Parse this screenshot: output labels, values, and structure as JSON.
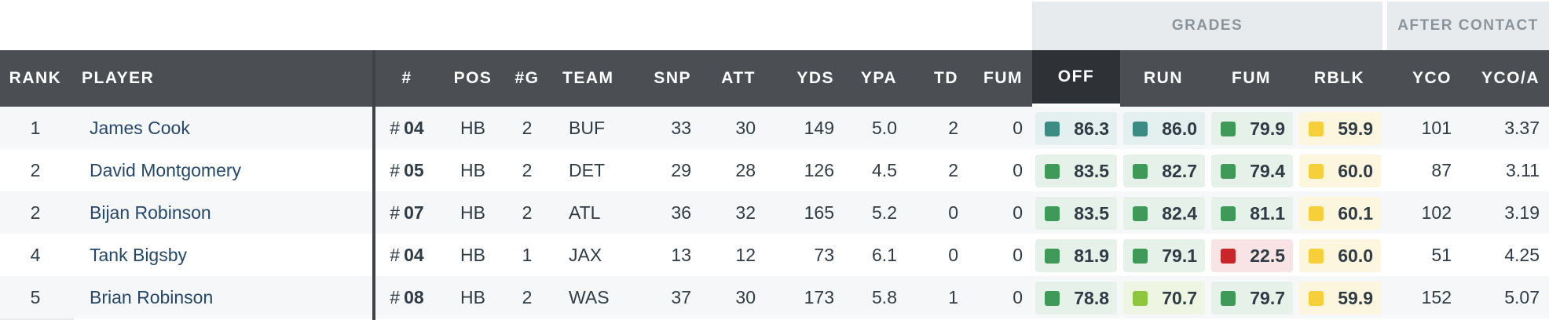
{
  "groups": {
    "grades": "GRADES",
    "after_contact": "AFTER CONTACT"
  },
  "columns": [
    "RANK",
    "PLAYER",
    "#",
    "POS",
    "#G",
    "TEAM",
    "SNP",
    "ATT",
    "YDS",
    "YPA",
    "TD",
    "FUM",
    "OFF",
    "RUN",
    "FUM",
    "RBLK",
    "YCO",
    "YCO/A"
  ],
  "colors": {
    "grade_teal": "#3c8c84",
    "grade_green": "#3f9a5a",
    "grade_lightgreen": "#8cc63f",
    "grade_yellow": "#f6cf3a",
    "grade_red": "#c8262a",
    "header_bg": "#4b4f53"
  },
  "rows": [
    {
      "rank": "1",
      "player": "James Cook",
      "jersey_prefix": "#",
      "jersey": "04",
      "pos": "HB",
      "g": "2",
      "team": "BUF",
      "snp": "33",
      "att": "30",
      "yds": "149",
      "ypa": "5.0",
      "td": "2",
      "fum": "0",
      "off": "86.3",
      "run": "86.0",
      "gfum": "79.9",
      "rblk": "59.9",
      "yco": "101",
      "ycoa": "3.37",
      "c_off": "teal",
      "c_run": "teal",
      "c_gfum": "green",
      "c_rblk": "yellow"
    },
    {
      "rank": "2",
      "player": "David Montgomery",
      "jersey_prefix": "#",
      "jersey": "05",
      "pos": "HB",
      "g": "2",
      "team": "DET",
      "snp": "29",
      "att": "28",
      "yds": "126",
      "ypa": "4.5",
      "td": "2",
      "fum": "0",
      "off": "83.5",
      "run": "82.7",
      "gfum": "79.4",
      "rblk": "60.0",
      "yco": "87",
      "ycoa": "3.11",
      "c_off": "green",
      "c_run": "green",
      "c_gfum": "green",
      "c_rblk": "yellow"
    },
    {
      "rank": "2",
      "player": "Bijan Robinson",
      "jersey_prefix": "#",
      "jersey": "07",
      "pos": "HB",
      "g": "2",
      "team": "ATL",
      "snp": "36",
      "att": "32",
      "yds": "165",
      "ypa": "5.2",
      "td": "0",
      "fum": "0",
      "off": "83.5",
      "run": "82.4",
      "gfum": "81.1",
      "rblk": "60.1",
      "yco": "102",
      "ycoa": "3.19",
      "c_off": "green",
      "c_run": "green",
      "c_gfum": "green",
      "c_rblk": "yellow"
    },
    {
      "rank": "4",
      "player": "Tank Bigsby",
      "jersey_prefix": "#",
      "jersey": "04",
      "pos": "HB",
      "g": "1",
      "team": "JAX",
      "snp": "13",
      "att": "12",
      "yds": "73",
      "ypa": "6.1",
      "td": "0",
      "fum": "0",
      "off": "81.9",
      "run": "79.1",
      "gfum": "22.5",
      "rblk": "60.0",
      "yco": "51",
      "ycoa": "4.25",
      "c_off": "green",
      "c_run": "green",
      "c_gfum": "red",
      "c_rblk": "yellow"
    },
    {
      "rank": "5",
      "player": "Brian Robinson",
      "jersey_prefix": "#",
      "jersey": "08",
      "pos": "HB",
      "g": "2",
      "team": "WAS",
      "snp": "37",
      "att": "30",
      "yds": "173",
      "ypa": "5.8",
      "td": "1",
      "fum": "0",
      "off": "78.8",
      "run": "70.7",
      "gfum": "79.7",
      "rblk": "59.9",
      "yco": "152",
      "ycoa": "5.07",
      "c_off": "green",
      "c_run": "lightgreen",
      "c_gfum": "green",
      "c_rblk": "yellow"
    }
  ]
}
